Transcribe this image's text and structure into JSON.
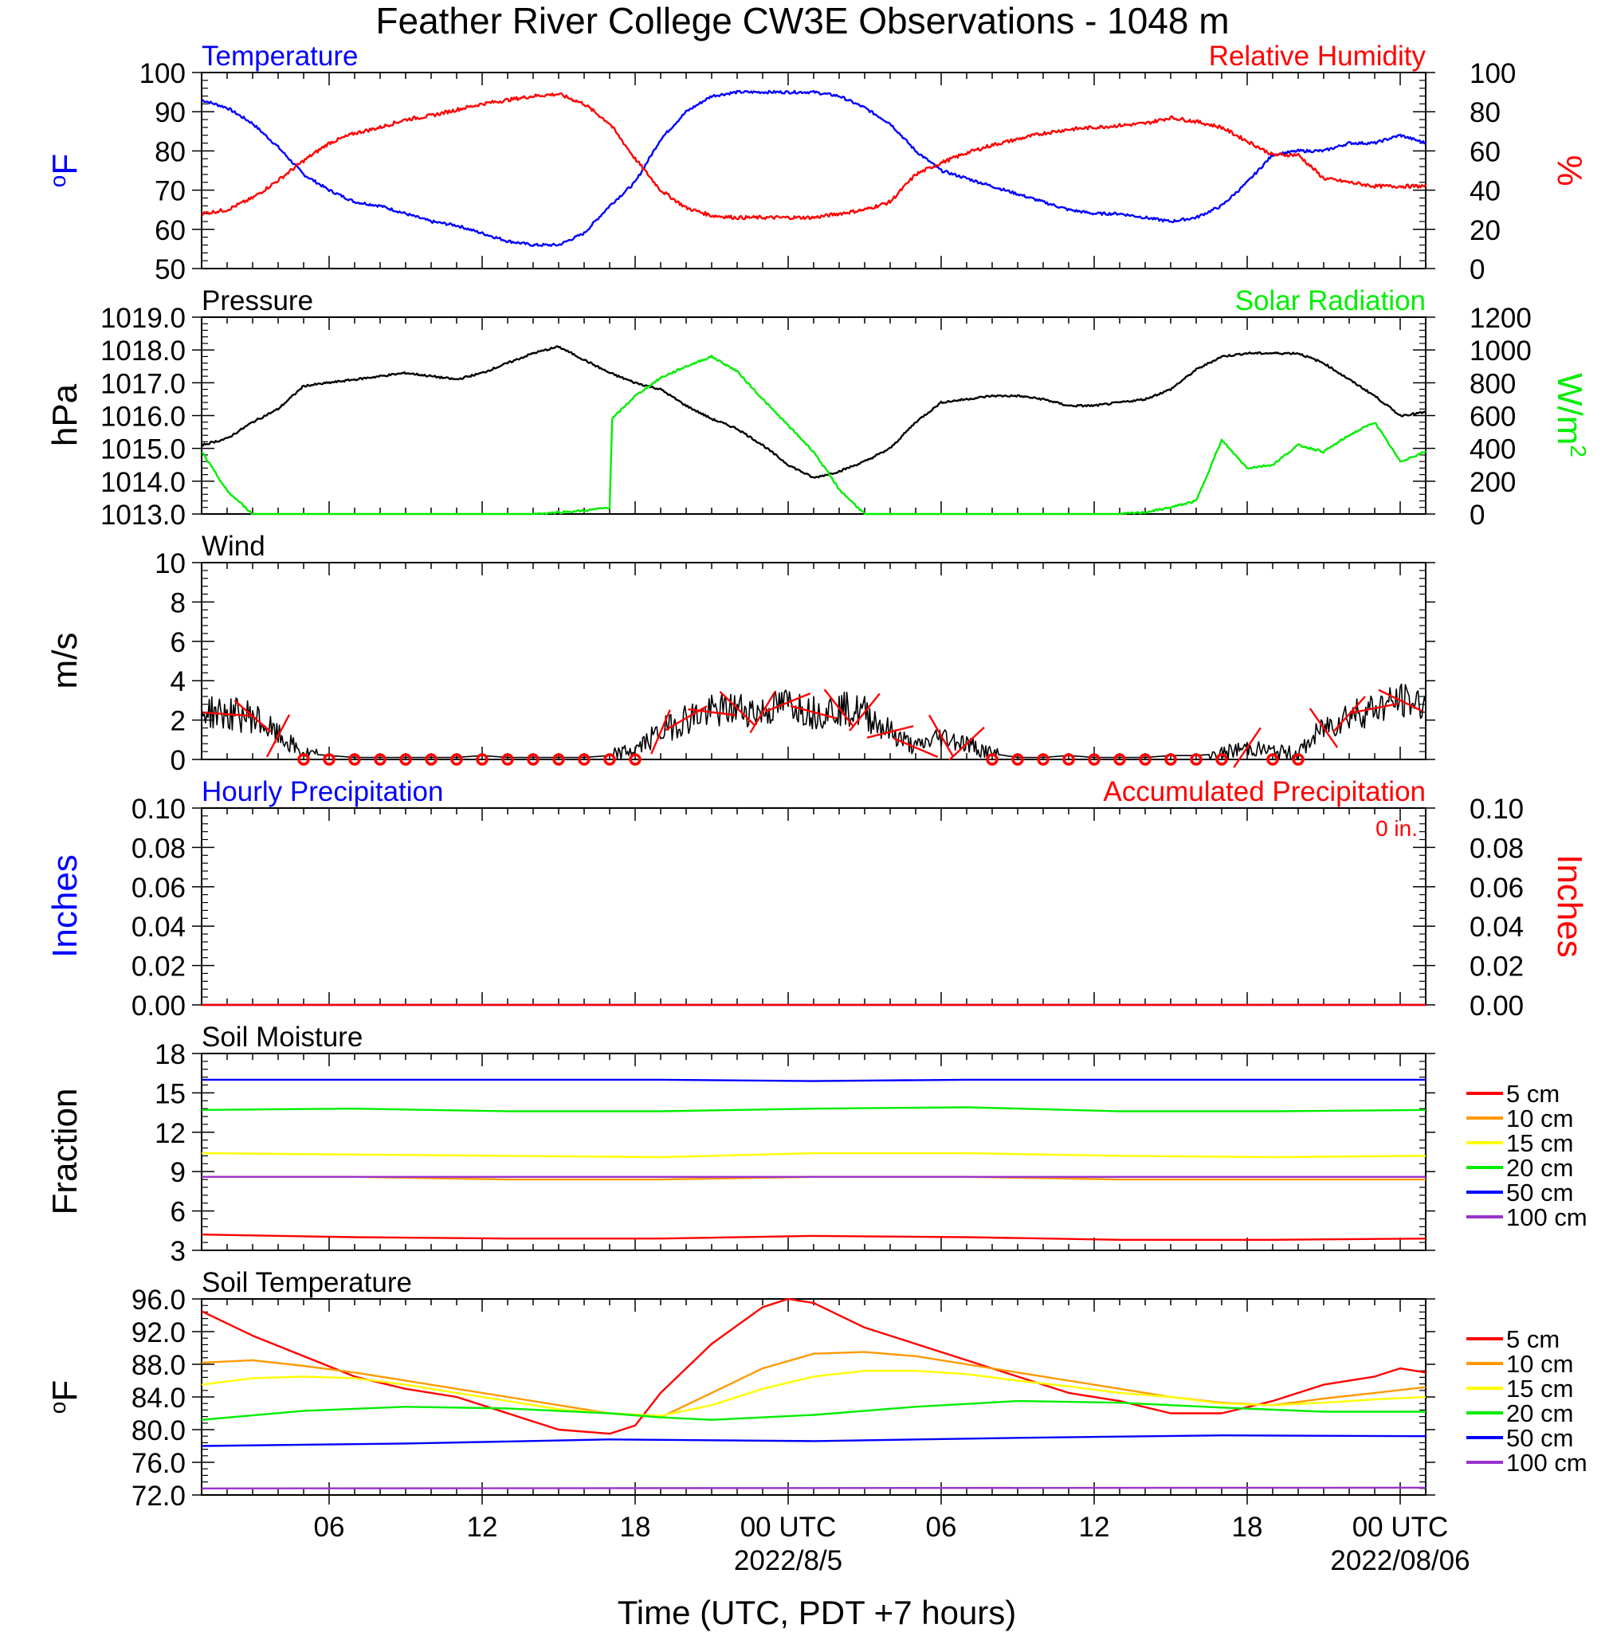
{
  "title": "Feather River College CW3E Observations - 1048 m",
  "xaxis": {
    "label": "Time (UTC, PDT +7 hours)",
    "ticks": [
      "06",
      "12",
      "18",
      "00 UTC",
      "06",
      "12",
      "18",
      "00 UTC"
    ],
    "tick_hours": [
      6,
      12,
      18,
      24,
      30,
      36,
      42,
      48
    ],
    "dates": [
      "2022/8/5",
      "2022/08/06"
    ],
    "date_hours": [
      24,
      48
    ],
    "range_hours": [
      1,
      49
    ]
  },
  "colors": {
    "temperature": "#0000ff",
    "humidity": "#ff0000",
    "pressure": "#000000",
    "solar": "#00ee00",
    "wind": "#000000",
    "barb": "#ff0000",
    "hourly_precip": "#0000ff",
    "accum_precip": "#ff0000",
    "depth_5": "#ff0000",
    "depth_10": "#ff9900",
    "depth_15": "#ffff00",
    "depth_20": "#00ee00",
    "depth_50": "#0000ff",
    "depth_100": "#9933cc"
  },
  "chart_data": [
    {
      "type": "line",
      "panel": "temperature_humidity",
      "title_left": "Temperature",
      "title_right": "Relative Humidity",
      "ylabel_left": "oF",
      "ylabel_right": "%",
      "ylim_left": [
        50,
        100
      ],
      "ylim_right": [
        0,
        100
      ],
      "yticks_left": [
        "50",
        "60",
        "70",
        "80",
        "90",
        "100"
      ],
      "yticks_right": [
        "0",
        "20",
        "40",
        "60",
        "80",
        "100"
      ],
      "series": [
        {
          "name": "Temperature",
          "axis": "left",
          "x": [
            1,
            2,
            3,
            4,
            5,
            6,
            7,
            8,
            9,
            10,
            11,
            12,
            13,
            14,
            15,
            16,
            17,
            18,
            19,
            20,
            21,
            22,
            23,
            24,
            25,
            26,
            27,
            28,
            29,
            30,
            31,
            32,
            33,
            34,
            35,
            36,
            37,
            38,
            39,
            40,
            41,
            42,
            43,
            44,
            45,
            46,
            47,
            48,
            49
          ],
          "y": [
            93,
            91,
            87,
            81,
            74,
            70,
            67,
            66,
            64,
            62,
            61,
            59,
            57,
            56,
            56,
            59,
            66,
            72,
            83,
            90,
            94,
            95,
            95,
            95,
            95,
            94,
            91,
            87,
            80,
            75,
            73,
            71,
            69,
            67,
            65,
            64,
            64,
            63,
            62,
            63,
            66,
            72,
            79,
            80,
            80,
            82,
            82,
            84,
            82
          ]
        },
        {
          "name": "Relative Humidity",
          "axis": "right",
          "x": [
            1,
            2,
            3,
            4,
            5,
            6,
            7,
            8,
            9,
            10,
            11,
            12,
            13,
            14,
            15,
            16,
            17,
            18,
            19,
            20,
            21,
            22,
            23,
            24,
            25,
            26,
            27,
            28,
            29,
            30,
            31,
            32,
            33,
            34,
            35,
            36,
            37,
            38,
            39,
            40,
            41,
            42,
            43,
            44,
            45,
            46,
            47,
            48,
            49
          ],
          "y": [
            28,
            30,
            36,
            45,
            55,
            64,
            69,
            72,
            76,
            78,
            81,
            84,
            86,
            88,
            89,
            84,
            74,
            56,
            40,
            31,
            27,
            26,
            26,
            26,
            26,
            28,
            30,
            34,
            48,
            54,
            59,
            63,
            66,
            69,
            71,
            72,
            73,
            74,
            77,
            75,
            72,
            65,
            58,
            58,
            46,
            44,
            42,
            42,
            42
          ]
        }
      ]
    },
    {
      "type": "line",
      "panel": "pressure_solar",
      "title_left": "Pressure",
      "title_right": "Solar Radiation",
      "ylabel_left": "hPa",
      "ylabel_right": "W/m2",
      "ylim_left": [
        1013,
        1019
      ],
      "ylim_right": [
        0,
        1200
      ],
      "yticks_left": [
        "1013.0",
        "1014.0",
        "1015.0",
        "1016.0",
        "1017.0",
        "1018.0",
        "1019.0"
      ],
      "yticks_right": [
        "0",
        "200",
        "400",
        "600",
        "800",
        "1000",
        "1200"
      ],
      "series": [
        {
          "name": "Pressure",
          "axis": "left",
          "x": [
            1,
            2,
            3,
            4,
            5,
            6,
            7,
            8,
            9,
            10,
            11,
            12,
            13,
            14,
            15,
            16,
            17,
            18,
            19,
            20,
            21,
            22,
            23,
            24,
            25,
            26,
            27,
            28,
            29,
            30,
            31,
            32,
            33,
            34,
            35,
            36,
            37,
            38,
            39,
            40,
            41,
            42,
            43,
            44,
            45,
            46,
            47,
            48,
            49
          ],
          "y": [
            1015.1,
            1015.3,
            1015.8,
            1016.2,
            1016.9,
            1017.0,
            1017.1,
            1017.2,
            1017.3,
            1017.2,
            1017.1,
            1017.3,
            1017.6,
            1017.9,
            1018.1,
            1017.7,
            1017.3,
            1017.0,
            1016.8,
            1016.3,
            1015.9,
            1015.6,
            1015.1,
            1014.5,
            1014.1,
            1014.3,
            1014.6,
            1015.0,
            1015.8,
            1016.4,
            1016.5,
            1016.6,
            1016.6,
            1016.5,
            1016.3,
            1016.3,
            1016.4,
            1016.5,
            1016.8,
            1017.4,
            1017.8,
            1017.9,
            1017.9,
            1017.9,
            1017.6,
            1017.1,
            1016.6,
            1016.0,
            1016.1
          ]
        },
        {
          "name": "Solar Radiation",
          "axis": "right",
          "x": [
            1,
            2,
            3,
            4,
            5,
            6,
            7,
            8,
            9,
            10,
            11,
            12,
            13,
            14,
            15,
            16,
            17,
            17.1,
            18,
            19,
            20,
            21,
            22,
            23,
            24,
            25,
            26,
            27,
            28,
            29,
            30,
            31,
            32,
            33,
            34,
            35,
            36,
            37,
            38,
            39,
            40,
            41,
            42,
            43,
            44,
            45,
            46,
            47,
            48,
            49
          ],
          "y": [
            380,
            140,
            0,
            0,
            0,
            0,
            0,
            0,
            0,
            0,
            0,
            0,
            0,
            0,
            10,
            20,
            40,
            580,
            720,
            830,
            900,
            960,
            870,
            700,
            540,
            380,
            150,
            0,
            0,
            0,
            0,
            0,
            0,
            0,
            0,
            0,
            0,
            0,
            10,
            40,
            80,
            450,
            280,
            300,
            420,
            380,
            480,
            560,
            320,
            380
          ]
        }
      ]
    },
    {
      "type": "line",
      "panel": "wind",
      "title_left": "Wind",
      "ylabel_left": "m/s",
      "ylim_left": [
        0,
        10
      ],
      "yticks_left": [
        "0",
        "2",
        "4",
        "6",
        "8",
        "10"
      ],
      "series": [
        {
          "name": "Wind",
          "axis": "left",
          "x": [
            1,
            2,
            3,
            4,
            5,
            6,
            7,
            8,
            9,
            10,
            11,
            12,
            13,
            14,
            15,
            16,
            17,
            18,
            19,
            20,
            21,
            22,
            23,
            24,
            25,
            26,
            27,
            28,
            29,
            30,
            31,
            32,
            33,
            34,
            35,
            36,
            37,
            38,
            39,
            40,
            41,
            42,
            43,
            44,
            45,
            46,
            47,
            48,
            49
          ],
          "y": [
            2.5,
            2.3,
            2.2,
            1.2,
            0.3,
            0.2,
            0.1,
            0.1,
            0.1,
            0.1,
            0.1,
            0.2,
            0.1,
            0.1,
            0.1,
            0.1,
            0.2,
            0.5,
            1.4,
            2.1,
            2.4,
            2.6,
            2.4,
            2.9,
            2.4,
            2.6,
            2.4,
            1.4,
            0.6,
            1.2,
            0.8,
            0.3,
            0.1,
            0.1,
            0.2,
            0.1,
            0.1,
            0.1,
            0.2,
            0.2,
            0.3,
            0.6,
            0.4,
            0.3,
            1.6,
            2.3,
            2.6,
            3.0,
            2.8
          ]
        }
      ]
    },
    {
      "type": "line",
      "panel": "precipitation",
      "title_left": "Hourly Precipitation",
      "title_right": "Accumulated Precipitation",
      "annotation": "0 in.",
      "ylabel_left": "Inches",
      "ylabel_right": "Inches",
      "ylim_left": [
        0,
        0.1
      ],
      "ylim_right": [
        0,
        0.1
      ],
      "yticks_left": [
        "0.00",
        "0.02",
        "0.04",
        "0.06",
        "0.08",
        "0.10"
      ],
      "yticks_right": [
        "0.00",
        "0.02",
        "0.04",
        "0.06",
        "0.08",
        "0.10"
      ],
      "series": [
        {
          "name": "Hourly Precipitation",
          "axis": "left",
          "x": [
            1,
            49
          ],
          "y": [
            0,
            0
          ]
        },
        {
          "name": "Accumulated Precipitation",
          "axis": "right",
          "x": [
            1,
            49
          ],
          "y": [
            0,
            0
          ]
        }
      ]
    },
    {
      "type": "line",
      "panel": "soil_moisture",
      "title_left": "Soil Moisture",
      "ylabel_left": "Fraction",
      "ylim_left": [
        3,
        18
      ],
      "yticks_left": [
        "3",
        "6",
        "9",
        "12",
        "15",
        "18"
      ],
      "legend": [
        "5 cm",
        "10 cm",
        "15 cm",
        "20 cm",
        "50 cm",
        "100 cm"
      ],
      "series": [
        {
          "name": "5 cm",
          "axis": "left",
          "x": [
            1,
            7,
            13,
            19,
            25,
            31,
            37,
            43,
            49
          ],
          "y": [
            4.2,
            4.0,
            3.9,
            3.9,
            4.1,
            4.0,
            3.8,
            3.8,
            3.9
          ]
        },
        {
          "name": "10 cm",
          "axis": "left",
          "x": [
            1,
            7,
            13,
            19,
            25,
            31,
            37,
            43,
            49
          ],
          "y": [
            8.6,
            8.6,
            8.4,
            8.4,
            8.6,
            8.6,
            8.4,
            8.4,
            8.4
          ]
        },
        {
          "name": "15 cm",
          "axis": "left",
          "x": [
            1,
            7,
            13,
            19,
            25,
            31,
            37,
            43,
            49
          ],
          "y": [
            10.4,
            10.3,
            10.2,
            10.1,
            10.4,
            10.4,
            10.2,
            10.1,
            10.2
          ]
        },
        {
          "name": "20 cm",
          "axis": "left",
          "x": [
            1,
            7,
            13,
            19,
            25,
            31,
            37,
            43,
            49
          ],
          "y": [
            13.7,
            13.8,
            13.6,
            13.6,
            13.8,
            13.9,
            13.6,
            13.6,
            13.7
          ]
        },
        {
          "name": "50 cm",
          "axis": "left",
          "x": [
            1,
            7,
            13,
            19,
            25,
            31,
            37,
            43,
            49
          ],
          "y": [
            16.0,
            16.0,
            16.0,
            16.0,
            15.9,
            16.0,
            16.0,
            16.0,
            16.0
          ]
        },
        {
          "name": "100 cm",
          "axis": "left",
          "x": [
            1,
            7,
            13,
            19,
            25,
            31,
            37,
            43,
            49
          ],
          "y": [
            8.6,
            8.6,
            8.6,
            8.6,
            8.6,
            8.6,
            8.6,
            8.6,
            8.6
          ]
        }
      ]
    },
    {
      "type": "line",
      "panel": "soil_temperature",
      "title_left": "Soil Temperature",
      "ylabel_left": "oF",
      "ylim_left": [
        72,
        96
      ],
      "yticks_left": [
        "72.0",
        "76.0",
        "80.0",
        "84.0",
        "88.0",
        "92.0",
        "96.0"
      ],
      "legend": [
        "5 cm",
        "10 cm",
        "15 cm",
        "20 cm",
        "50 cm",
        "100 cm"
      ],
      "series": [
        {
          "name": "5 cm",
          "axis": "left",
          "x": [
            1,
            3,
            5,
            7,
            9,
            11,
            13,
            15,
            17,
            18,
            19,
            21,
            23,
            24,
            25,
            27,
            29,
            31,
            33,
            35,
            37,
            39,
            41,
            43,
            45,
            47,
            48,
            49
          ],
          "y": [
            94.5,
            91.5,
            89.0,
            86.5,
            85.0,
            84.0,
            82.0,
            80.0,
            79.5,
            80.5,
            84.5,
            90.5,
            95.0,
            96.0,
            95.5,
            92.5,
            90.5,
            88.5,
            86.5,
            84.5,
            83.5,
            82.0,
            82.0,
            83.5,
            85.5,
            86.5,
            87.5,
            87.0
          ]
        },
        {
          "name": "10 cm",
          "axis": "left",
          "x": [
            1,
            3,
            5,
            7,
            9,
            11,
            13,
            15,
            17,
            19,
            21,
            23,
            25,
            27,
            29,
            31,
            33,
            35,
            37,
            39,
            41,
            43,
            45,
            47,
            49
          ],
          "y": [
            88.2,
            88.5,
            87.8,
            87.0,
            86.0,
            85.0,
            84.0,
            83.0,
            82.0,
            81.5,
            84.5,
            87.5,
            89.3,
            89.5,
            89.0,
            88.0,
            87.0,
            86.0,
            85.0,
            84.0,
            83.3,
            83.0,
            83.8,
            84.5,
            85.2
          ]
        },
        {
          "name": "15 cm",
          "axis": "left",
          "x": [
            1,
            3,
            5,
            7,
            9,
            11,
            13,
            15,
            17,
            19,
            21,
            23,
            25,
            27,
            29,
            31,
            33,
            35,
            37,
            39,
            41,
            43,
            45,
            47,
            49
          ],
          "y": [
            85.5,
            86.3,
            86.5,
            86.3,
            85.5,
            84.5,
            83.5,
            82.5,
            82.0,
            81.7,
            83.0,
            85.0,
            86.5,
            87.2,
            87.2,
            86.8,
            86.0,
            85.3,
            84.5,
            84.0,
            83.2,
            83.0,
            83.3,
            83.7,
            84.0
          ]
        },
        {
          "name": "20 cm",
          "axis": "left",
          "x": [
            1,
            5,
            9,
            13,
            17,
            19,
            21,
            25,
            29,
            33,
            37,
            41,
            45,
            49
          ],
          "y": [
            81.2,
            82.3,
            82.8,
            82.6,
            82.0,
            81.5,
            81.2,
            81.8,
            82.8,
            83.5,
            83.3,
            82.7,
            82.2,
            82.2
          ]
        },
        {
          "name": "50 cm",
          "axis": "left",
          "x": [
            1,
            9,
            17,
            25,
            33,
            41,
            49
          ],
          "y": [
            78.0,
            78.3,
            78.8,
            78.6,
            79.0,
            79.3,
            79.2
          ]
        },
        {
          "name": "100 cm",
          "axis": "left",
          "x": [
            1,
            49
          ],
          "y": [
            72.8,
            72.9
          ]
        }
      ]
    }
  ]
}
